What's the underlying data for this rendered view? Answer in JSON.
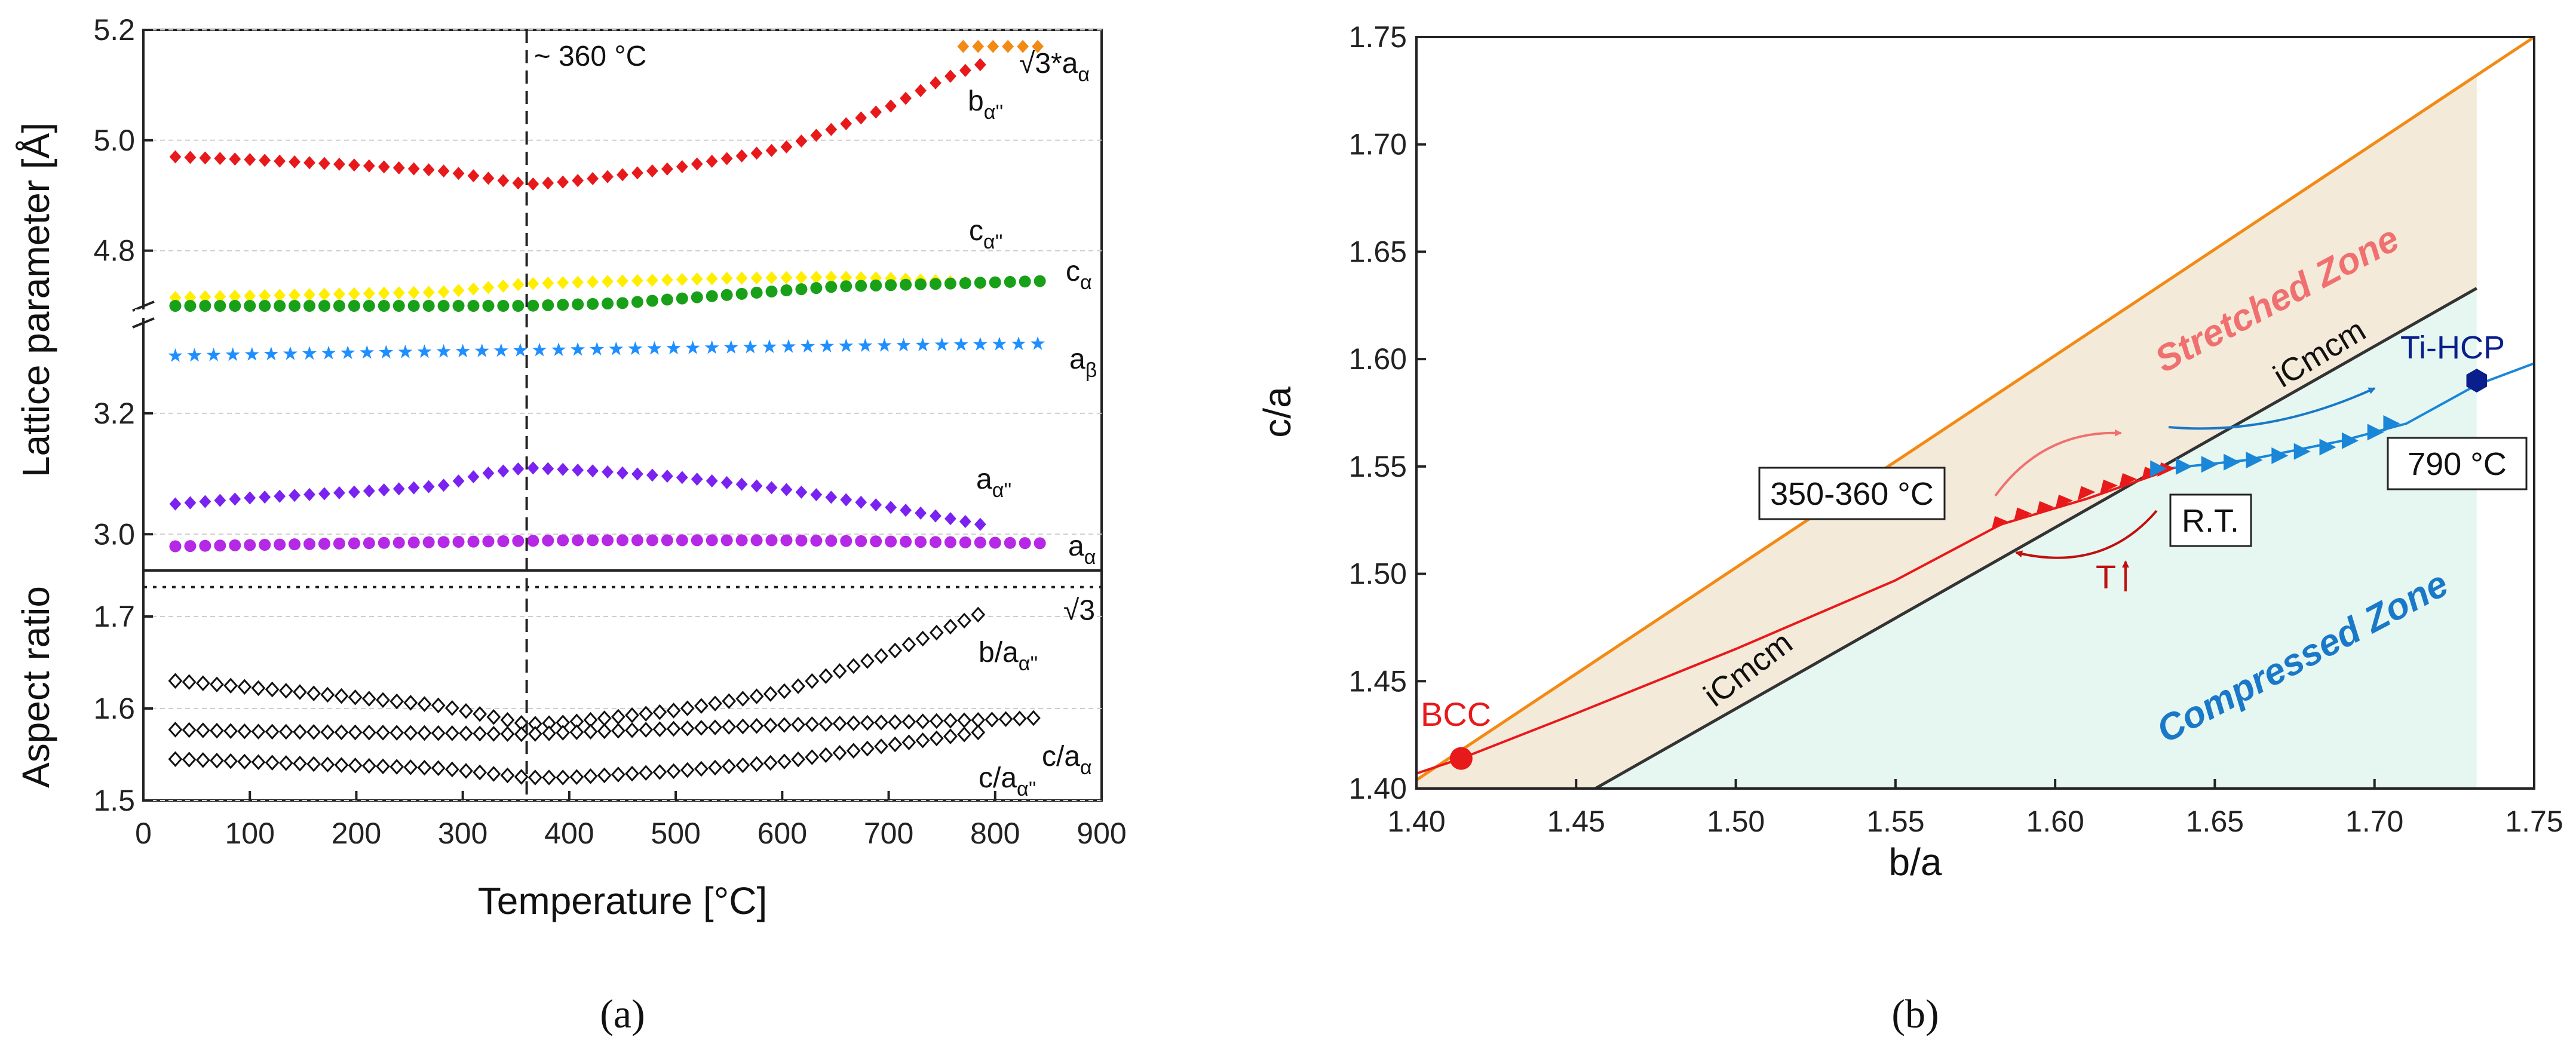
{
  "colors": {
    "b_alpha2": "#e8191b",
    "sqrt3_a_alpha": "#f28a14",
    "c_alpha2": "#ffee00",
    "c_alpha": "#19a019",
    "a_beta": "#1f8fff",
    "a_alpha2": "#7a22f0",
    "a_alpha": "#b428e6",
    "aspect": "#111111",
    "orange_line": "#f28a14",
    "icmcm_line": "#333333",
    "red_path": "#e8191b",
    "blue_path": "#1a86d8",
    "stretched_fill": "#f4ead9",
    "compressed_fill": "#e6f7f2",
    "stretched_text": "#f07070",
    "compressed_text": "#1a78c8",
    "ti_hcp": "#0a1e8c"
  },
  "chart_data": [
    {
      "panel": "(a)",
      "type": "scatter",
      "xlabel": "Temperature [°C]",
      "xlim": [
        0,
        900
      ],
      "xticks": [
        0,
        100,
        200,
        300,
        400,
        500,
        600,
        700,
        800,
        900
      ],
      "vline": {
        "x": 360,
        "label": "~ 360 °C"
      },
      "top": {
        "ylabel": "Lattice parameter [Å]",
        "ybreak": "3.35 to 4.70",
        "upper_ylim": [
          4.7,
          5.2
        ],
        "upper_yticks": [
          4.8,
          5.0,
          5.2
        ],
        "lower_ylim": [
          2.94,
          3.35
        ],
        "lower_yticks": [
          3.0,
          3.2
        ],
        "series": [
          {
            "name": "b_α''",
            "label": "b",
            "label_sub": "α''",
            "marker": "diamond",
            "x": [
              30,
              100,
              200,
              280,
              360,
              400,
              500,
              600,
              700,
              750,
              790
            ],
            "y": [
              4.97,
              4.965,
              4.955,
              4.945,
              4.92,
              4.925,
              4.95,
              4.985,
              5.06,
              5.11,
              5.14
            ]
          },
          {
            "name": "√3*a_α",
            "label": "√3*a",
            "label_sub": "α",
            "marker": "diamond",
            "x": [
              770,
              790,
              810,
              830,
              845
            ],
            "y": [
              5.17,
              5.17,
              5.17,
              5.17,
              5.17
            ]
          },
          {
            "name": "c_α''",
            "label": "c",
            "label_sub": "α''",
            "marker": "diamond",
            "x": [
              30,
              100,
              200,
              280,
              360,
              450,
              550,
              650,
              700,
              750,
              790
            ],
            "y": [
              4.715,
              4.718,
              4.722,
              4.725,
              4.74,
              4.745,
              4.75,
              4.752,
              4.75,
              4.745,
              4.74
            ]
          },
          {
            "name": "c_α",
            "label": "c",
            "label_sub": "α",
            "marker": "circle",
            "x": [
              30,
              100,
              200,
              280,
              360,
              450,
              550,
              650,
              750,
              845
            ],
            "y": [
              4.7,
              4.7,
              4.7,
              4.7,
              4.7,
              4.705,
              4.72,
              4.735,
              4.74,
              4.745
            ]
          },
          {
            "name": "a_β",
            "label": "a",
            "label_sub": "β",
            "marker": "star",
            "x": [
              30,
              200,
              400,
              600,
              845
            ],
            "y": [
              3.295,
              3.3,
              3.305,
              3.31,
              3.315
            ]
          },
          {
            "name": "a_α''",
            "label": "a",
            "label_sub": "α''",
            "marker": "diamond",
            "x": [
              30,
              100,
              200,
              280,
              320,
              360,
              420,
              500,
              600,
              700,
              790
            ],
            "y": [
              3.05,
              3.06,
              3.07,
              3.08,
              3.1,
              3.11,
              3.105,
              3.095,
              3.075,
              3.045,
              3.015
            ]
          },
          {
            "name": "a_α",
            "label": "a",
            "label_sub": "α",
            "marker": "circle",
            "x": [
              30,
              200,
              400,
              600,
              845
            ],
            "y": [
              2.98,
              2.985,
              2.99,
              2.99,
              2.985
            ]
          }
        ]
      },
      "bottom": {
        "ylabel": "Aspect ratio",
        "ylim": [
          1.5,
          1.75
        ],
        "yticks": [
          1.5,
          1.6,
          1.7
        ],
        "hline": {
          "y": 1.732,
          "label": "√3"
        },
        "series": [
          {
            "name": "b/a_α''",
            "label": "b/a",
            "label_sub": "α''",
            "x": [
              30,
              100,
              200,
              280,
              360,
              400,
              500,
              600,
              700,
              790
            ],
            "y": [
              1.63,
              1.623,
              1.612,
              1.603,
              1.583,
              1.585,
              1.598,
              1.618,
              1.66,
              1.705
            ]
          },
          {
            "name": "c/a_α",
            "label": "c/a",
            "label_sub": "α",
            "x": [
              30,
              100,
              200,
              300,
              360,
              400,
              500,
              600,
              700,
              800,
              845
            ],
            "y": [
              1.577,
              1.575,
              1.574,
              1.573,
              1.572,
              1.574,
              1.578,
              1.582,
              1.585,
              1.588,
              1.59
            ]
          },
          {
            "name": "c/a_α''",
            "label": "c/a",
            "label_sub": "α''",
            "x": [
              30,
              100,
              200,
              280,
              360,
              400,
              500,
              600,
              700,
              790
            ],
            "y": [
              1.545,
              1.542,
              1.538,
              1.535,
              1.525,
              1.525,
              1.532,
              1.542,
              1.56,
              1.575
            ]
          }
        ]
      }
    },
    {
      "panel": "(b)",
      "type": "line",
      "xlabel": "b/a",
      "ylabel": "c/a",
      "xlim": [
        1.4,
        1.75
      ],
      "ylim": [
        1.4,
        1.75
      ],
      "xticks": [
        1.4,
        1.45,
        1.5,
        1.55,
        1.6,
        1.65,
        1.7,
        1.75
      ],
      "yticks": [
        1.4,
        1.45,
        1.5,
        1.55,
        1.6,
        1.65,
        1.7,
        1.75
      ],
      "lines": {
        "orange": {
          "x": [
            1.4,
            1.75
          ],
          "y": [
            1.404,
            1.75
          ]
        },
        "icmcm": {
          "x": [
            1.456,
            1.732
          ],
          "y": [
            1.4,
            1.633
          ]
        },
        "zone_boundary_x": 1.732
      },
      "red_path": {
        "x": [
          1.4,
          1.414,
          1.45,
          1.5,
          1.55,
          1.583,
          1.61,
          1.635
        ],
        "y": [
          1.407,
          1.414,
          1.435,
          1.465,
          1.497,
          1.523,
          1.535,
          1.548
        ]
      },
      "red_markers": {
        "x": [
          1.583,
          1.59,
          1.597,
          1.603,
          1.61,
          1.617,
          1.623,
          1.63,
          1.635
        ],
        "y": [
          1.523,
          1.527,
          1.53,
          1.533,
          1.537,
          1.54,
          1.543,
          1.546,
          1.548
        ]
      },
      "blue_path": {
        "x": [
          1.635,
          1.66,
          1.69,
          1.71,
          1.732,
          1.75
        ],
        "y": [
          1.549,
          1.553,
          1.562,
          1.57,
          1.588,
          1.598
        ]
      },
      "blue_markers": {
        "x": [
          1.632,
          1.64,
          1.648,
          1.655,
          1.662,
          1.67,
          1.677,
          1.685,
          1.692,
          1.7,
          1.705
        ],
        "y": [
          1.549,
          1.55,
          1.551,
          1.552,
          1.553,
          1.555,
          1.557,
          1.559,
          1.562,
          1.566,
          1.57
        ]
      },
      "points": {
        "bcc": {
          "x": 1.414,
          "y": 1.414,
          "label": "BCC"
        },
        "ti_hcp": {
          "x": 1.732,
          "y": 1.59,
          "label": "Ti-HCP"
        }
      },
      "labels": {
        "icmcm_upper": "iCmcm",
        "icmcm_lower": "iCmcm",
        "stretched": "Stretched Zone",
        "compressed": "Compressed Zone",
        "box_350": "350-360 °C",
        "box_rt": "R.T.",
        "box_790": "790 °C",
        "t_arrow": "T"
      }
    }
  ],
  "panel_labels": {
    "a": "(a)",
    "b": "(b)"
  }
}
